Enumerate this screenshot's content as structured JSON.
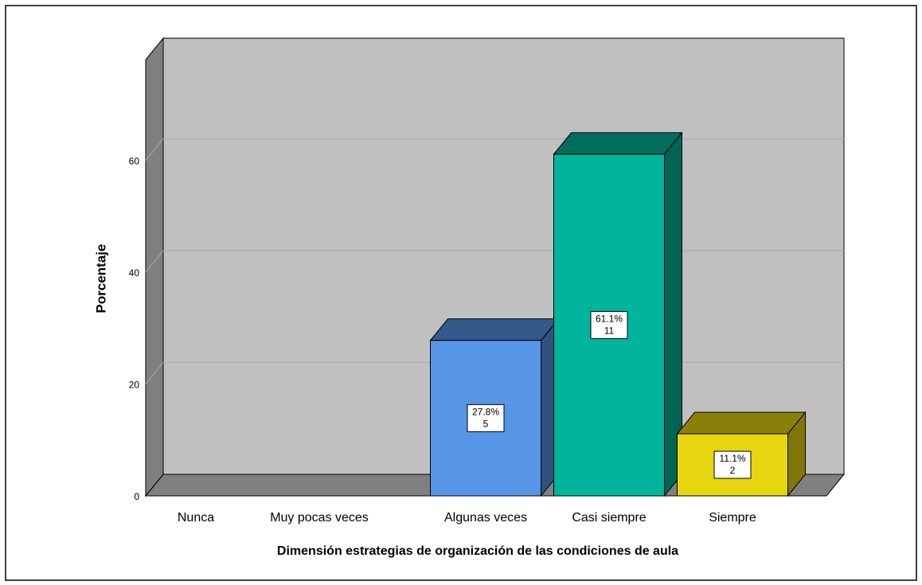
{
  "chart_data": {
    "type": "bar3d",
    "xlabel": "Dimensión estrategias de organización de las condiciones de aula",
    "ylabel": "Porcentaje",
    "categories": [
      "Nunca",
      "Muy pocas veces",
      "Algunas veces",
      "Casi siempre",
      "Siempre"
    ],
    "values": [
      0,
      0,
      27.8,
      61.1,
      11.1
    ],
    "value_labels": [
      null,
      null,
      "27.8%",
      "61.1%",
      "11.1%"
    ],
    "counts": [
      null,
      null,
      5,
      11,
      2
    ],
    "colors": [
      "#5795e6",
      "#5795e6",
      "#5795e6",
      "#00b59b",
      "#e6d60f"
    ],
    "ylim": [
      0,
      78
    ],
    "yticks": [
      0,
      20,
      40,
      60
    ],
    "grid": true
  }
}
